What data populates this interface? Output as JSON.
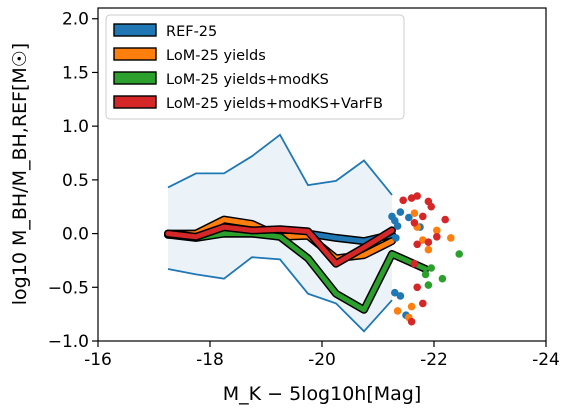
{
  "chart_data": {
    "type": "line",
    "xlabel": "M_K − 5log10h[Mag]",
    "ylabel": "log10 M_BH/M_BH,REF[M☉]",
    "xlim": [
      -16,
      -24
    ],
    "ylim": [
      -1.0,
      2.1
    ],
    "xticks": [
      -16,
      -18,
      -20,
      -22,
      -24
    ],
    "xtick_labels": [
      "-16",
      "-18",
      "-20",
      "-22",
      "-24"
    ],
    "yticks": [
      -1.0,
      -0.5,
      0.0,
      0.5,
      1.0,
      1.5,
      2.0
    ],
    "ytick_labels": [
      "−1.0",
      "−0.5",
      "0.0",
      "0.5",
      "1.0",
      "1.5",
      "2.0"
    ],
    "legend_position": "top-left",
    "band": {
      "color": "#1f77b4",
      "x": [
        -17.25,
        -17.75,
        -18.25,
        -18.75,
        -19.25,
        -19.75,
        -20.25,
        -20.75,
        -21.25
      ],
      "upper": [
        0.43,
        0.56,
        0.56,
        0.72,
        0.92,
        0.45,
        0.49,
        0.68,
        0.36
      ],
      "lower": [
        -0.33,
        -0.38,
        -0.42,
        -0.22,
        -0.24,
        -0.56,
        -0.65,
        -0.91,
        -0.62
      ]
    },
    "series": [
      {
        "name": "REF-25",
        "color": "#1f77b4",
        "x": [
          -17.25,
          -17.75,
          -18.25,
          -18.75,
          -19.25,
          -19.75,
          -20.25,
          -20.75,
          -21.25
        ],
        "y": [
          0.0,
          0.0,
          0.0,
          0.0,
          0.0,
          0.0,
          -0.04,
          -0.07,
          -0.01
        ],
        "scatter": [
          [
            -21.25,
            0.16
          ],
          [
            -21.3,
            0.12
          ],
          [
            -21.35,
            0.07
          ],
          [
            -21.4,
            0.2
          ],
          [
            -21.32,
            -0.04
          ],
          [
            -21.55,
            0.15
          ],
          [
            -21.75,
            0.06
          ],
          [
            -21.3,
            -0.55
          ],
          [
            -21.4,
            -0.58
          ],
          [
            -21.5,
            -0.76
          ]
        ]
      },
      {
        "name": "LoM-25 yields",
        "color": "#ff7f0e",
        "x": [
          -17.25,
          -17.75,
          -18.25,
          -18.75,
          -19.25,
          -19.75,
          -20.25,
          -20.75,
          -21.25
        ],
        "y": [
          -0.01,
          0.0,
          0.13,
          0.09,
          -0.03,
          -0.02,
          -0.23,
          -0.2,
          -0.07
        ],
        "scatter": [
          [
            -21.35,
            -0.72
          ],
          [
            -21.55,
            -0.78
          ],
          [
            -21.6,
            -0.68
          ],
          [
            -21.7,
            0.06
          ],
          [
            -21.8,
            -0.06
          ],
          [
            -21.9,
            -0.15
          ],
          [
            -22.05,
            0.03
          ],
          [
            -22.3,
            -0.04
          ],
          [
            -21.65,
            0.19
          ]
        ]
      },
      {
        "name": "LoM-25 yields+modKS",
        "color": "#2ca02c",
        "x": [
          -17.25,
          -17.75,
          -18.25,
          -18.75,
          -19.25,
          -19.75,
          -20.25,
          -20.75,
          -21.25,
          -21.85
        ],
        "y": [
          -0.01,
          -0.04,
          0.0,
          0.0,
          -0.03,
          -0.23,
          -0.56,
          -0.71,
          -0.19,
          -0.33
        ],
        "scatter": [
          [
            -21.85,
            -0.38
          ],
          [
            -21.9,
            -0.48
          ],
          [
            -22.15,
            -0.42
          ],
          [
            -22.45,
            -0.19
          ],
          [
            -21.95,
            -0.32
          ]
        ]
      },
      {
        "name": "LoM-25 yields+modKS+VarFB",
        "color": "#d62728",
        "x": [
          -17.25,
          -17.75,
          -18.25,
          -18.75,
          -19.25,
          -19.75,
          -20.25,
          -20.75,
          -21.25
        ],
        "y": [
          0.0,
          -0.03,
          0.06,
          0.03,
          0.04,
          0.02,
          -0.28,
          -0.13,
          0.03
        ],
        "scatter": [
          [
            -21.45,
            0.31
          ],
          [
            -21.6,
            0.33
          ],
          [
            -21.7,
            0.35
          ],
          [
            -21.9,
            0.3
          ],
          [
            -21.95,
            0.25
          ],
          [
            -21.8,
            0.16
          ],
          [
            -21.65,
            0.1
          ],
          [
            -22.2,
            0.13
          ],
          [
            -22.05,
            -0.03
          ],
          [
            -21.9,
            -0.08
          ],
          [
            -21.7,
            -0.1
          ],
          [
            -21.65,
            -0.28
          ],
          [
            -21.7,
            -0.5
          ],
          [
            -21.8,
            -0.65
          ],
          [
            -21.6,
            -0.82
          ]
        ]
      }
    ]
  }
}
